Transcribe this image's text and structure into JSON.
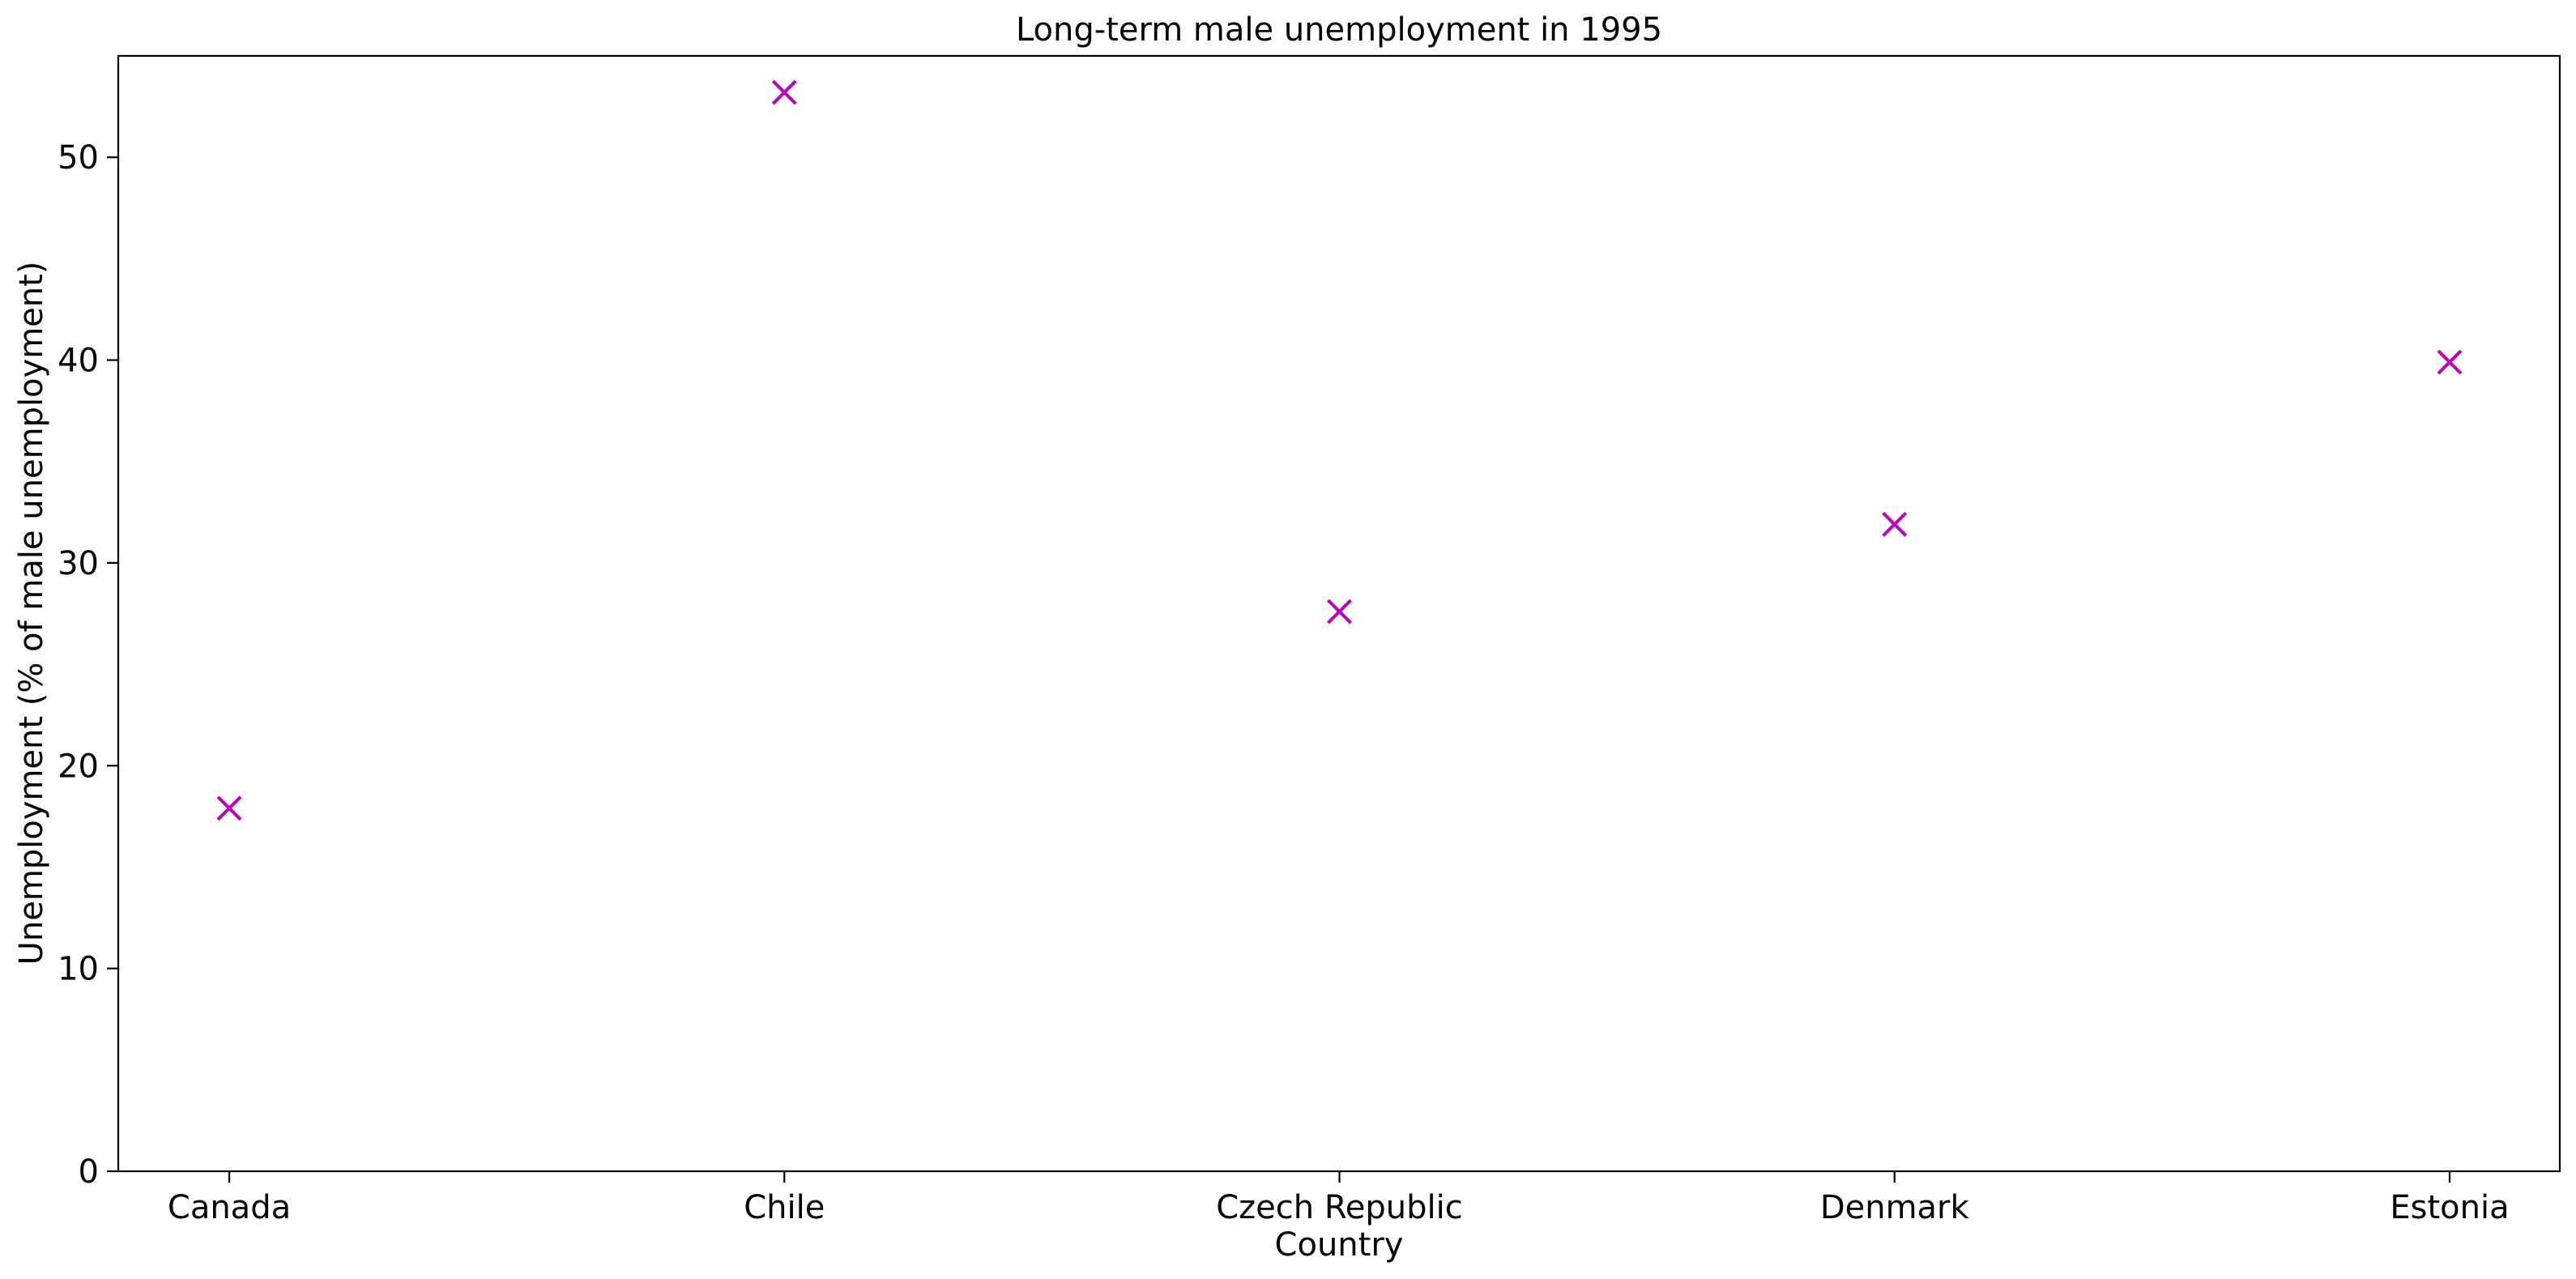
{
  "chart_data": {
    "type": "scatter",
    "title": "Long-term male unemployment in 1995",
    "xlabel": "Country",
    "ylabel": "Unemployment (% of male unemployment)",
    "categories": [
      "Canada",
      "Chile",
      "Czech Republic",
      "Denmark",
      "Estonia"
    ],
    "values": [
      17.9,
      53.2,
      27.6,
      31.9,
      39.9
    ],
    "ylim": [
      0,
      55
    ],
    "yticks": [
      0,
      10,
      20,
      30,
      40,
      50
    ],
    "marker": "x",
    "marker_color": "#bf00bf",
    "grid": false,
    "legend": "none"
  }
}
